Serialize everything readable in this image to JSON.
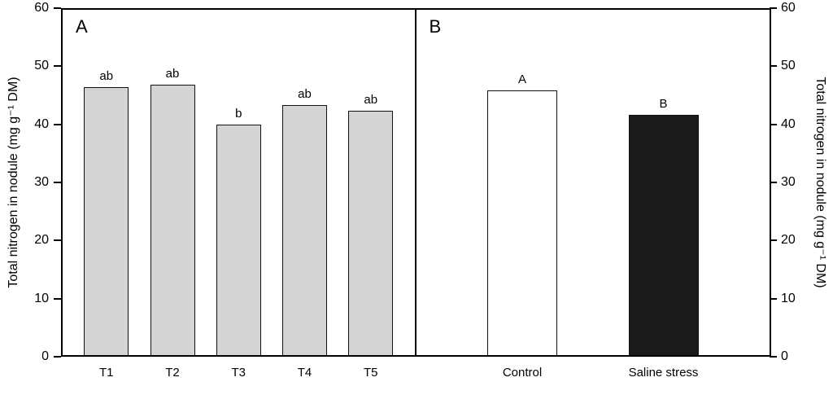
{
  "chart_data": {
    "type": "bar",
    "title": "",
    "ylabel": "Total nitrogen in nodule (mg g⁻¹ DM)",
    "ylim": [
      0,
      60
    ],
    "yticks": [
      0,
      10,
      20,
      30,
      40,
      50,
      60
    ],
    "grid": false,
    "legend": "none",
    "panels": [
      {
        "label": "A",
        "categories": [
          "T1",
          "T2",
          "T3",
          "T4",
          "T5"
        ],
        "values": [
          46.5,
          47,
          40,
          43.5,
          42.5
        ],
        "annotations": [
          "ab",
          "ab",
          "b",
          "ab",
          "ab"
        ],
        "bar_fills": [
          "#d4d4d4",
          "#d4d4d4",
          "#d4d4d4",
          "#d4d4d4",
          "#d4d4d4"
        ]
      },
      {
        "label": "B",
        "categories": [
          "Control",
          "Saline stress"
        ],
        "values": [
          46,
          41.8
        ],
        "annotations": [
          "A",
          "B"
        ],
        "bar_fills": [
          "#ffffff",
          "#1a1a1a"
        ]
      }
    ]
  },
  "colors": {
    "axis": "#000000",
    "gray_bar": "#d4d4d4",
    "black_bar": "#1a1a1a",
    "white_bar": "#ffffff"
  }
}
